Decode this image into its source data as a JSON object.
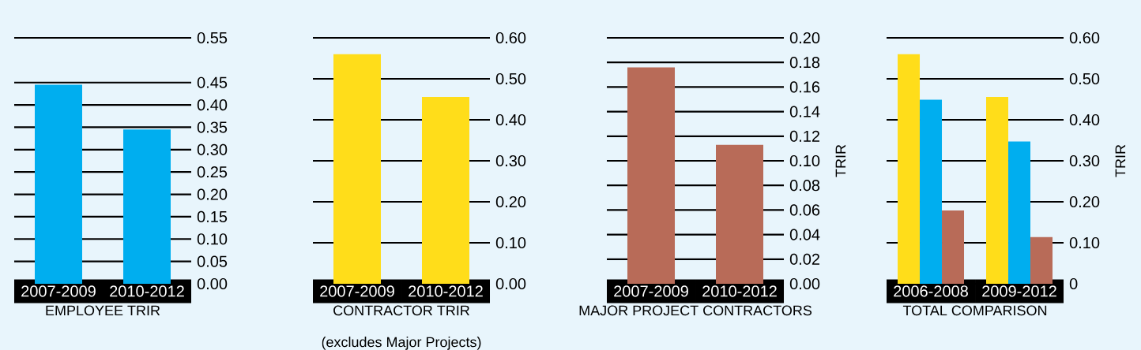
{
  "chart_data": [
    {
      "type": "bar",
      "xlabel": "EMPLOYEE TRIR",
      "categories": [
        "2007-2009",
        "2010-2012"
      ],
      "values": [
        0.445,
        0.345
      ],
      "color": "#00aeef",
      "ylim": [
        0,
        0.55
      ],
      "yticks": [
        {
          "value": 0,
          "label": "0.00"
        },
        0.05,
        {
          "value": 0.1,
          "label": "0.10"
        },
        0.15,
        {
          "value": 0.2,
          "label": "0.20"
        },
        0.25,
        {
          "value": 0.3,
          "label": "0.30"
        },
        0.35,
        {
          "value": 0.4,
          "label": "0.40"
        },
        0.45,
        0.55
      ],
      "grid": "y"
    },
    {
      "type": "bar",
      "xlabel": "CONTRACTOR TRIR",
      "subtitle": "(excludes Major Projects)",
      "categories": [
        "2007-2009",
        "2010-2012"
      ],
      "values": [
        0.56,
        0.456
      ],
      "color": "#ffdd1a",
      "ylim": [
        0,
        0.6
      ],
      "yticks": [
        {
          "value": 0,
          "label": "0.00"
        },
        {
          "value": 0.1,
          "label": "0.10"
        },
        {
          "value": 0.2,
          "label": "0.20"
        },
        {
          "value": 0.3,
          "label": "0.30"
        },
        {
          "value": 0.4,
          "label": "0.40"
        },
        {
          "value": 0.5,
          "label": "0.50"
        },
        {
          "value": 0.6,
          "label": "0.60"
        }
      ],
      "grid": "y"
    },
    {
      "type": "bar",
      "xlabel": "MAJOR PROJECT CONTRACTORS",
      "ylabel": "TRIR",
      "categories": [
        "2007-2009",
        "2010-2012"
      ],
      "values": [
        0.176,
        0.113
      ],
      "color": "#b86b58",
      "ylim": [
        0,
        0.2
      ],
      "yticks": [
        {
          "value": 0,
          "label": "0.00"
        },
        0.02,
        0.04,
        0.06,
        0.08,
        {
          "value": 0.1,
          "label": "0.10"
        },
        0.12,
        0.14,
        0.16,
        0.18,
        {
          "value": 0.2,
          "label": "0.20"
        }
      ],
      "grid": "y"
    },
    {
      "type": "bar",
      "xlabel": "TOTAL COMPARISON",
      "ylabel": "TRIR",
      "categories": [
        "2006-2008",
        "2009-2012"
      ],
      "series": [
        {
          "color": "#ffdd1a",
          "values": [
            0.56,
            0.456
          ]
        },
        {
          "color": "#00aeef",
          "values": [
            0.449,
            0.347
          ]
        },
        {
          "color": "#b86b58",
          "values": [
            0.179,
            0.114
          ]
        }
      ],
      "ylim": [
        0,
        0.6
      ],
      "yticks": [
        0,
        {
          "value": 0.1,
          "label": "0.10"
        },
        {
          "value": 0.2,
          "label": "0.20"
        },
        {
          "value": 0.3,
          "label": "0.30"
        },
        {
          "value": 0.4,
          "label": "0.40"
        },
        {
          "value": 0.5,
          "label": "0.50"
        },
        {
          "value": 0.6,
          "label": "0.60"
        }
      ],
      "grid": "y"
    }
  ]
}
